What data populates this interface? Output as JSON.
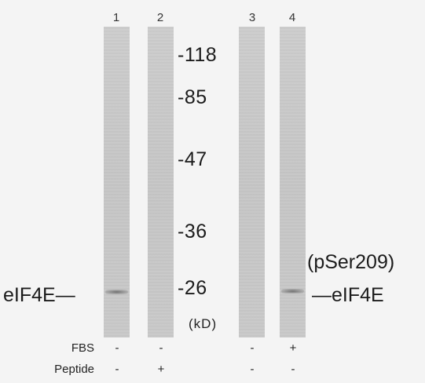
{
  "lanes": [
    {
      "number": "1",
      "fbs": "-",
      "peptide": "-",
      "band_26": true
    },
    {
      "number": "2",
      "fbs": "-",
      "peptide": "+",
      "band_26": false
    },
    {
      "number": "3",
      "fbs": "-",
      "peptide": "-",
      "band_26": false
    },
    {
      "number": "4",
      "fbs": "+",
      "peptide": "-",
      "band_26": true
    }
  ],
  "markers": [
    "-118",
    "-85",
    "-47",
    "-36",
    "-26"
  ],
  "unit": "(kD)",
  "left_label": "eIF4E",
  "right_label_top": "(pSer209)",
  "right_label_bottom": "eIF4E",
  "rows": {
    "fbs": "FBS",
    "peptide": "Peptide"
  }
}
